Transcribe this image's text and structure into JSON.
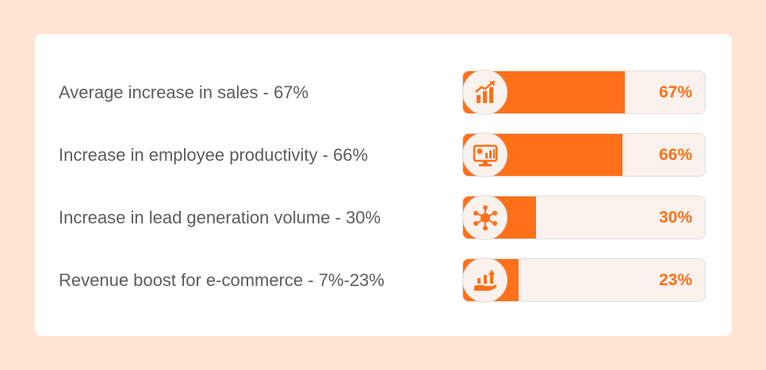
{
  "colors": {
    "background": "#ffe3d3",
    "card": "#ffffff",
    "accent": "#ff7019",
    "track": "#fbf1ed",
    "label": "#5d5d5d"
  },
  "chart_data": {
    "type": "bar",
    "orientation": "horizontal",
    "ylim": [
      0,
      100
    ],
    "rows": [
      {
        "label": "Average increase in sales - 67%",
        "value": 67,
        "value_label": "67%",
        "icon": "bar-chart-growth-icon"
      },
      {
        "label": "Increase in employee productivity - 66%",
        "value": 66,
        "value_label": "66%",
        "icon": "monitor-analytics-icon"
      },
      {
        "label": "Increase in lead generation volume - 30%",
        "value": 30,
        "value_label": "30%",
        "icon": "network-people-icon"
      },
      {
        "label": "Revenue boost for e-commerce - 7%-23%",
        "value": 23,
        "value_label": "23%",
        "icon": "hand-growth-icon"
      }
    ]
  }
}
